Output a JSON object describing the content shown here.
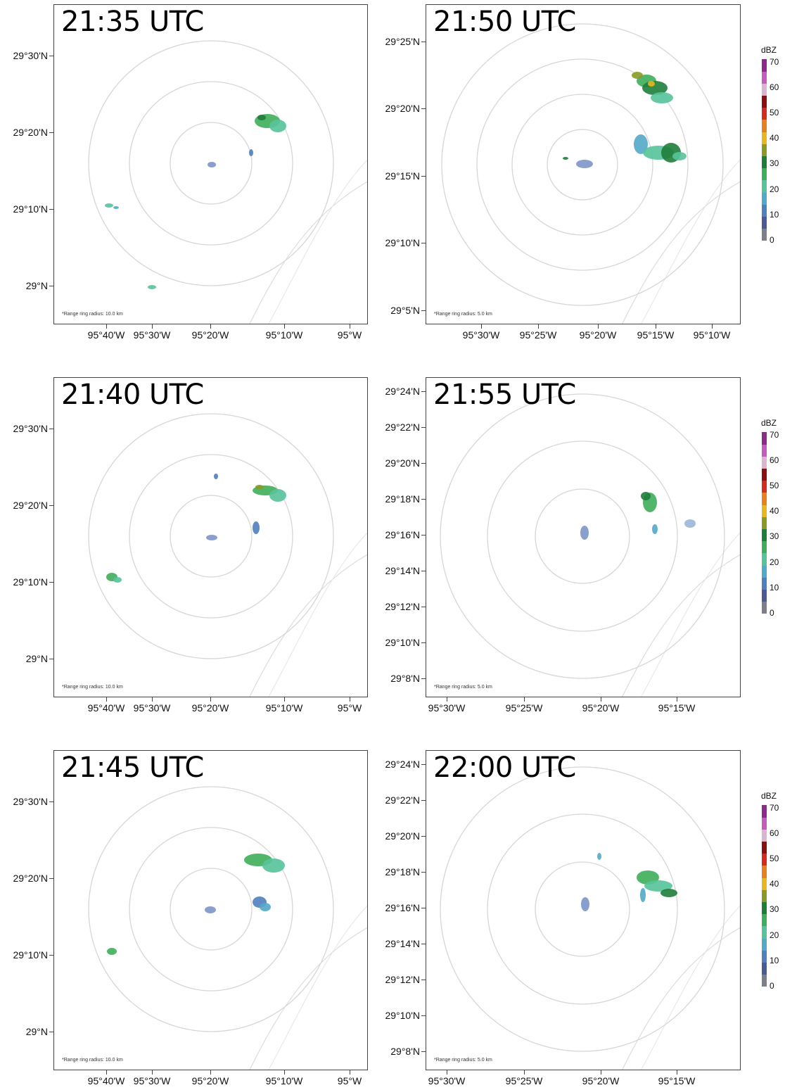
{
  "panels": [
    {
      "id": "p1",
      "time": "21:35 UTC",
      "ring_note": "*Range ring radius: 10.0 km",
      "ylabels": [
        "29°30'N",
        "29°20'N",
        "29°10'N",
        "29°N"
      ],
      "xlabels": [
        "95°40'W",
        "95°30'W",
        "95°20'W",
        "95°10'W",
        "95°W"
      ]
    },
    {
      "id": "p2",
      "time": "21:50 UTC",
      "ring_note": "*Range ring radius: 5.0 km",
      "ylabels": [
        "29°25'N",
        "29°20'N",
        "29°15'N",
        "29°10'N",
        "29°5'N"
      ],
      "xlabels": [
        "95°30'W",
        "95°25'W",
        "95°20'W",
        "95°15'W",
        "95°10'W"
      ]
    },
    {
      "id": "p3",
      "time": "21:40 UTC",
      "ring_note": "*Range ring radius: 10.0 km",
      "ylabels": [
        "29°30'N",
        "29°20'N",
        "29°10'N",
        "29°N"
      ],
      "xlabels": [
        "95°40'W",
        "95°30'W",
        "95°20'W",
        "95°10'W",
        "95°W"
      ]
    },
    {
      "id": "p4",
      "time": "21:55 UTC",
      "ring_note": "*Range ring radius: 5.0 km",
      "ylabels": [
        "29°24'N",
        "29°22'N",
        "29°20'N",
        "29°18'N",
        "29°16'N",
        "29°14'N",
        "29°12'N",
        "29°10'N",
        "29°8'N"
      ],
      "xlabels": [
        "95°30'W",
        "95°25'W",
        "95°20'W",
        "95°15'W"
      ]
    },
    {
      "id": "p5",
      "time": "21:45 UTC",
      "ring_note": "*Range ring radius: 10.0 km",
      "ylabels": [
        "29°30'N",
        "29°20'N",
        "29°10'N",
        "29°N"
      ],
      "xlabels": [
        "95°40'W",
        "95°30'W",
        "95°20'W",
        "95°10'W",
        "95°W"
      ]
    },
    {
      "id": "p6",
      "time": "22:00 UTC",
      "ring_note": "*Range ring radius: 5.0 km",
      "ylabels": [
        "29°24'N",
        "29°22'N",
        "29°20'N",
        "29°18'N",
        "29°16'N",
        "29°14'N",
        "29°12'N",
        "29°10'N",
        "29°8'N"
      ],
      "xlabels": [
        "95°30'W",
        "95°25'W",
        "95°20'W",
        "95°15'W"
      ]
    }
  ],
  "colorbar": {
    "title": "dBZ",
    "ticks": [
      "70",
      "60",
      "50",
      "40",
      "30",
      "20",
      "10",
      "0"
    ],
    "colors": [
      "#7a7f8a",
      "#4a5b94",
      "#4f7fbc",
      "#53a9c9",
      "#56c39a",
      "#3fae5a",
      "#1f7d3a",
      "#8a9a25",
      "#e7b81f",
      "#e8801e",
      "#d62a20",
      "#8a1010",
      "#d9b6cf",
      "#c45cc0",
      "#8a2a8a"
    ]
  },
  "icons": {
    "range_ring": "range-ring",
    "radar_echo": "reflectivity-echo",
    "coastline": "coastline"
  }
}
